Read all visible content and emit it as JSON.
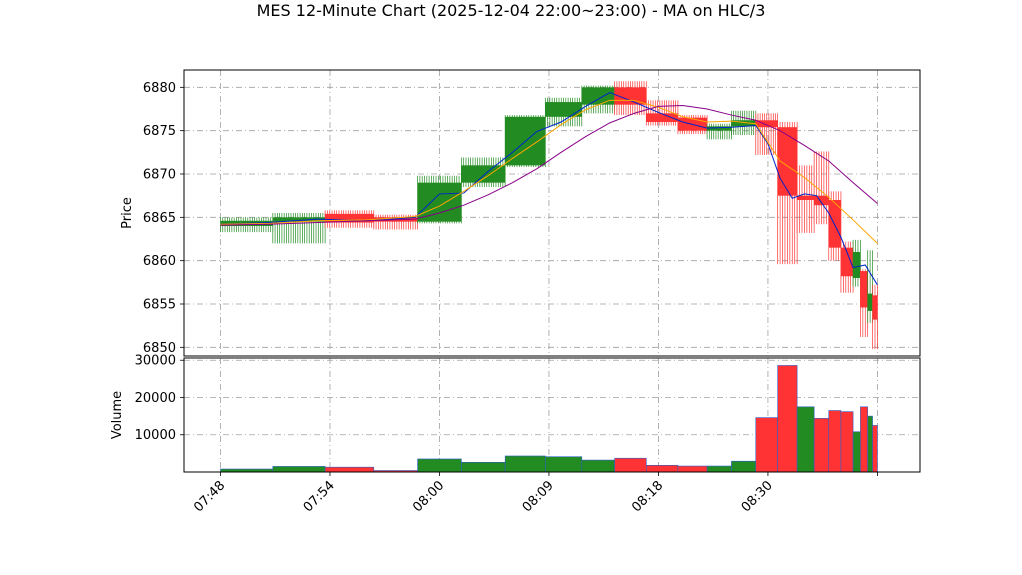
{
  "title": "MES 12-Minute Chart (2025-12-04 22:00~23:00) - MA on HLC/3",
  "colors": {
    "up": "#228B22",
    "down": "#FF3333",
    "vol_edge": "#2E5FC8",
    "ma_fast": "#0022CC",
    "ma_mid": "#FFA500",
    "ma_slow": "#880088",
    "grid": "#A0A0A0"
  },
  "chart_data": [
    {
      "type": "candlestick",
      "ylabel": "Price",
      "ylim": [
        6849,
        6882
      ],
      "yticks": [
        6850,
        6855,
        6860,
        6865,
        6870,
        6875,
        6880
      ],
      "grid": true,
      "x_tick_labels": [
        "07:48",
        "07:54",
        "08:00",
        "08:09",
        "08:18",
        "08:30",
        ""
      ],
      "x_tick_positions": [
        0,
        9,
        18,
        27,
        36,
        45,
        54
      ],
      "xlim": [
        -3,
        57.5
      ],
      "candles": [
        {
          "t": 0,
          "w": 4.3,
          "open": 6864.0,
          "high": 6865.0,
          "low": 6863.3,
          "close": 6864.6
        },
        {
          "t": 4.3,
          "w": 4.3,
          "open": 6864.5,
          "high": 6865.5,
          "low": 6862.0,
          "close": 6865.0
        },
        {
          "t": 8.6,
          "w": 4.0,
          "open": 6865.4,
          "high": 6865.8,
          "low": 6863.8,
          "close": 6864.4
        },
        {
          "t": 12.6,
          "w": 3.6,
          "open": 6865.0,
          "high": 6865.3,
          "low": 6863.6,
          "close": 6864.5
        },
        {
          "t": 16.2,
          "w": 3.6,
          "open": 6864.5,
          "high": 6869.8,
          "low": 6864.3,
          "close": 6869.0
        },
        {
          "t": 19.8,
          "w": 3.6,
          "open": 6869.0,
          "high": 6871.9,
          "low": 6868.5,
          "close": 6871.0
        },
        {
          "t": 23.4,
          "w": 3.3,
          "open": 6871.0,
          "high": 6876.8,
          "low": 6870.8,
          "close": 6876.6
        },
        {
          "t": 26.7,
          "w": 3.0,
          "open": 6876.6,
          "high": 6878.8,
          "low": 6875.5,
          "close": 6878.3
        },
        {
          "t": 29.7,
          "w": 2.7,
          "open": 6878.0,
          "high": 6880.2,
          "low": 6877.0,
          "close": 6880.0
        },
        {
          "t": 32.4,
          "w": 2.6,
          "open": 6880.0,
          "high": 6880.7,
          "low": 6876.8,
          "close": 6878.0
        },
        {
          "t": 35.0,
          "w": 2.6,
          "open": 6877.0,
          "high": 6878.5,
          "low": 6875.6,
          "close": 6876.0
        },
        {
          "t": 37.6,
          "w": 2.4,
          "open": 6876.5,
          "high": 6876.8,
          "low": 6874.6,
          "close": 6875.0
        },
        {
          "t": 40.0,
          "w": 2.0,
          "open": 6875.0,
          "high": 6875.8,
          "low": 6874.0,
          "close": 6875.5
        },
        {
          "t": 42.0,
          "w": 2.0,
          "open": 6875.5,
          "high": 6877.3,
          "low": 6874.5,
          "close": 6876.2
        },
        {
          "t": 44.0,
          "w": 1.8,
          "open": 6876.2,
          "high": 6877.0,
          "low": 6872.2,
          "close": 6875.4
        },
        {
          "t": 45.8,
          "w": 1.6,
          "open": 6875.4,
          "high": 6876.0,
          "low": 6859.6,
          "close": 6867.5
        },
        {
          "t": 47.4,
          "w": 1.4,
          "open": 6867.5,
          "high": 6871.0,
          "low": 6863.2,
          "close": 6867.0
        },
        {
          "t": 48.8,
          "w": 1.2,
          "open": 6867.5,
          "high": 6872.6,
          "low": 6864.2,
          "close": 6866.4
        },
        {
          "t": 50.0,
          "w": 1.0,
          "open": 6867.0,
          "high": 6868.0,
          "low": 6860.0,
          "close": 6861.5
        },
        {
          "t": 51.0,
          "w": 1.0,
          "open": 6861.5,
          "high": 6862.2,
          "low": 6856.3,
          "close": 6858.2
        },
        {
          "t": 52.0,
          "w": 0.6,
          "open": 6858.0,
          "high": 6862.4,
          "low": 6857.0,
          "close": 6861.0
        },
        {
          "t": 52.6,
          "w": 0.6,
          "open": 6858.8,
          "high": 6859.0,
          "low": 6851.2,
          "close": 6854.6
        },
        {
          "t": 53.2,
          "w": 0.4,
          "open": 6854.2,
          "high": 6861.2,
          "low": 6852.8,
          "close": 6856.2
        },
        {
          "t": 53.6,
          "w": 0.4,
          "open": 6856.0,
          "high": 6857.2,
          "low": 6849.8,
          "close": 6853.2
        }
      ],
      "series": [
        {
          "key": "ma_fast",
          "x": [
            0,
            4,
            8,
            12,
            16,
            18,
            20,
            22,
            24,
            26,
            28,
            30,
            32,
            34,
            36,
            38,
            40,
            42,
            44,
            45,
            46,
            47,
            48,
            49,
            50,
            51,
            52,
            53,
            54
          ],
          "y": [
            6864.2,
            6864.4,
            6864.8,
            6864.6,
            6865.0,
            6867.7,
            6867.8,
            6870.3,
            6872.5,
            6874.9,
            6876.0,
            6877.8,
            6879.4,
            6878.3,
            6877.1,
            6876.0,
            6875.3,
            6875.4,
            6875.6,
            6873.5,
            6869.5,
            6867.2,
            6867.7,
            6867.5,
            6865.5,
            6862.7,
            6859.2,
            6859.5,
            6857.2
          ]
        },
        {
          "key": "ma_mid",
          "x": [
            0,
            4,
            8,
            12,
            16,
            18,
            20,
            22,
            24,
            26,
            28,
            30,
            32,
            34,
            36,
            38,
            40,
            42,
            44,
            46,
            48,
            50,
            52,
            54
          ],
          "y": [
            6864.2,
            6864.3,
            6864.6,
            6864.7,
            6865.1,
            6866.3,
            6868.0,
            6869.8,
            6871.8,
            6873.7,
            6875.7,
            6877.4,
            6878.5,
            6878.5,
            6877.7,
            6876.6,
            6876.0,
            6876.1,
            6875.8,
            6871.5,
            6869.6,
            6867.3,
            6864.7,
            6862.0
          ]
        },
        {
          "key": "ma_slow",
          "x": [
            0,
            4,
            8,
            12,
            16,
            18,
            20,
            22,
            24,
            26,
            28,
            30,
            32,
            34,
            36,
            38,
            40,
            42,
            44,
            46,
            48,
            50,
            52,
            54
          ],
          "y": [
            6864.1,
            6864.2,
            6864.4,
            6864.6,
            6864.8,
            6865.5,
            6866.4,
            6867.6,
            6869.0,
            6870.6,
            6872.5,
            6874.3,
            6875.9,
            6877.0,
            6877.8,
            6877.9,
            6877.5,
            6876.8,
            6876.2,
            6875.0,
            6873.3,
            6871.5,
            6869.0,
            6866.6
          ]
        }
      ]
    },
    {
      "type": "bar",
      "ylabel": "Volume",
      "ylim": [
        0,
        30600
      ],
      "yticks": [
        10000,
        20000,
        30000
      ],
      "grid": true,
      "bars": [
        {
          "t": 0,
          "w": 4.3,
          "v": 800,
          "up": true
        },
        {
          "t": 4.3,
          "w": 4.3,
          "v": 1500,
          "up": true
        },
        {
          "t": 8.6,
          "w": 4.0,
          "v": 1300,
          "up": false
        },
        {
          "t": 12.6,
          "w": 3.6,
          "v": 400,
          "up": false
        },
        {
          "t": 16.2,
          "w": 3.6,
          "v": 3500,
          "up": true
        },
        {
          "t": 19.8,
          "w": 3.6,
          "v": 2600,
          "up": true
        },
        {
          "t": 23.4,
          "w": 3.3,
          "v": 4300,
          "up": true
        },
        {
          "t": 26.7,
          "w": 3.0,
          "v": 4100,
          "up": true
        },
        {
          "t": 29.7,
          "w": 2.7,
          "v": 3200,
          "up": true
        },
        {
          "t": 32.4,
          "w": 2.6,
          "v": 3700,
          "up": false
        },
        {
          "t": 35.0,
          "w": 2.6,
          "v": 1800,
          "up": false
        },
        {
          "t": 37.6,
          "w": 2.4,
          "v": 1600,
          "up": false
        },
        {
          "t": 40.0,
          "w": 2.0,
          "v": 1600,
          "up": true
        },
        {
          "t": 42.0,
          "w": 2.0,
          "v": 2900,
          "up": true
        },
        {
          "t": 44.0,
          "w": 1.8,
          "v": 14600,
          "up": false
        },
        {
          "t": 45.8,
          "w": 1.6,
          "v": 28600,
          "up": false
        },
        {
          "t": 47.4,
          "w": 1.4,
          "v": 17500,
          "up": true
        },
        {
          "t": 48.8,
          "w": 1.2,
          "v": 14400,
          "up": false
        },
        {
          "t": 50.0,
          "w": 1.0,
          "v": 16500,
          "up": false
        },
        {
          "t": 51.0,
          "w": 1.0,
          "v": 16200,
          "up": false
        },
        {
          "t": 52.0,
          "w": 0.6,
          "v": 10800,
          "up": true
        },
        {
          "t": 52.6,
          "w": 0.6,
          "v": 17500,
          "up": false
        },
        {
          "t": 53.2,
          "w": 0.4,
          "v": 15000,
          "up": true
        },
        {
          "t": 53.6,
          "w": 0.4,
          "v": 12500,
          "up": false
        }
      ]
    }
  ]
}
